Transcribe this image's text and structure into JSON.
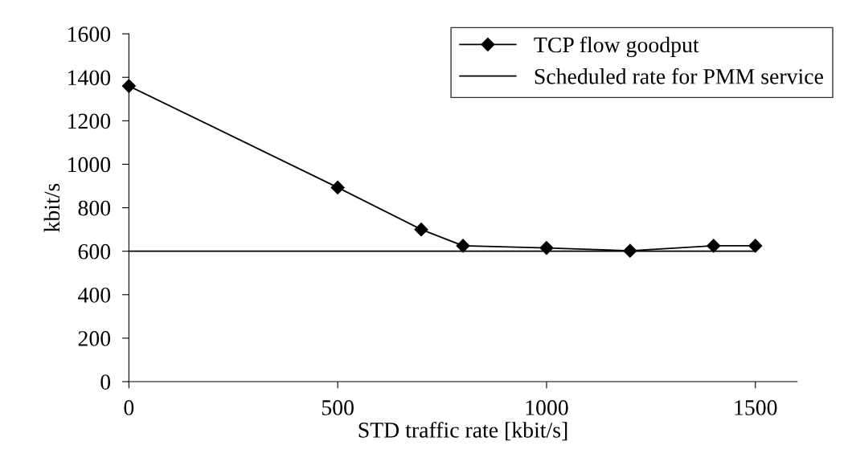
{
  "chart_data": {
    "type": "line",
    "xlabel": "STD traffic rate [kbit/s]",
    "ylabel": "kbit/s",
    "x": [
      0,
      500,
      700,
      800,
      1000,
      1200,
      1400,
      1500
    ],
    "series": [
      {
        "name": "TCP flow goodput",
        "color": "#000000",
        "marker": "diamond",
        "values": [
          1360,
          893,
          700,
          625,
          615,
          602,
          625,
          625
        ]
      },
      {
        "name": "Scheduled rate for PMM service",
        "color": "#000000",
        "marker": "none",
        "x": [
          0,
          1500
        ],
        "values": [
          600,
          600
        ]
      }
    ],
    "xlim": [
      0,
      1600
    ],
    "xticks": [
      0,
      500,
      1000,
      1500
    ],
    "ylim": [
      0,
      1600
    ],
    "yticks": [
      0,
      200,
      400,
      600,
      800,
      1000,
      1200,
      1400,
      1600
    ],
    "grid": false,
    "legend": "top right",
    "line_style": "solid"
  }
}
